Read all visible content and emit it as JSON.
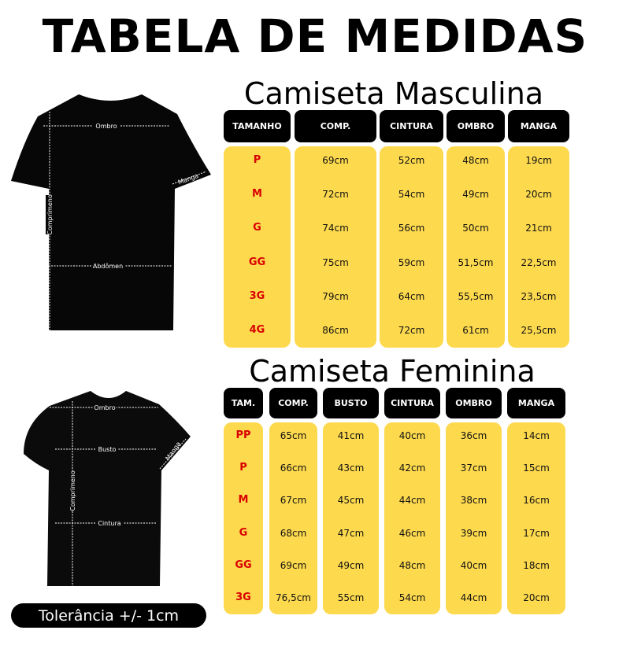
{
  "title": "TABELA DE MEDIDAS",
  "male": {
    "subtitle": "Camiseta Masculina",
    "shirt_labels": {
      "shoulder": "Ombro",
      "sleeve": "Manga",
      "length": "Comprimeno",
      "abdomen": "Abdômen"
    },
    "headers": [
      "TAMANHO",
      "COMP.",
      "CINTURA",
      "OMBRO",
      "MANGA"
    ],
    "rows": [
      [
        "P",
        "69cm",
        "52cm",
        "48cm",
        "19cm"
      ],
      [
        "M",
        "72cm",
        "54cm",
        "49cm",
        "20cm"
      ],
      [
        "G",
        "74cm",
        "56cm",
        "50cm",
        "21cm"
      ],
      [
        "GG",
        "75cm",
        "59cm",
        "51,5cm",
        "22,5cm"
      ],
      [
        "3G",
        "79cm",
        "64cm",
        "55,5cm",
        "23,5cm"
      ],
      [
        "4G",
        "86cm",
        "72cm",
        "61cm",
        "25,5cm"
      ]
    ]
  },
  "female": {
    "subtitle": "Camiseta Feminina",
    "shirt_labels": {
      "shoulder": "Ombro",
      "bust": "Busto",
      "sleeve": "Manga",
      "length": "Comprimeno",
      "waist": "Cintura"
    },
    "headers": [
      "TAM.",
      "COMP.",
      "BUSTO",
      "CINTURA",
      "OMBRO",
      "MANGA"
    ],
    "rows": [
      [
        "PP",
        "65cm",
        "41cm",
        "40cm",
        "36cm",
        "14cm"
      ],
      [
        "P",
        "66cm",
        "43cm",
        "42cm",
        "37cm",
        "15cm"
      ],
      [
        "M",
        "67cm",
        "45cm",
        "44cm",
        "38cm",
        "16cm"
      ],
      [
        "G",
        "68cm",
        "47cm",
        "46cm",
        "39cm",
        "17cm"
      ],
      [
        "GG",
        "69cm",
        "49cm",
        "48cm",
        "40cm",
        "18cm"
      ],
      [
        "3G",
        "76,5cm",
        "55cm",
        "54cm",
        "44cm",
        "20cm"
      ]
    ]
  },
  "tolerance": "Tolerância +/- 1cm",
  "colors": {
    "yellow": "#fdd94e",
    "size_red": "#d90000",
    "header_black": "#000000"
  }
}
